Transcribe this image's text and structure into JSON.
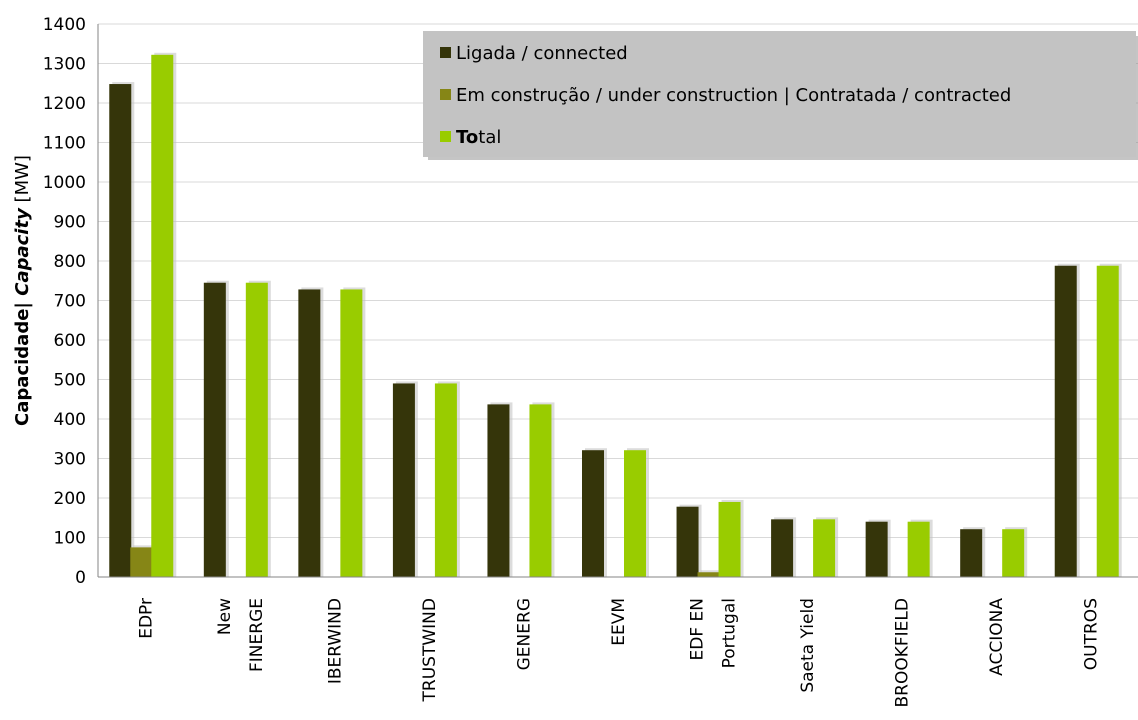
{
  "chart_data": {
    "type": "bar",
    "ylabel_parts": [
      {
        "text": "Capacidade| ",
        "bold": true,
        "italic": false
      },
      {
        "text": "Capacity",
        "bold": true,
        "italic": true
      },
      {
        "text": " [MW]",
        "bold": false,
        "italic": false
      }
    ],
    "ylim": [
      0,
      1400
    ],
    "yticks": [
      0,
      100,
      200,
      300,
      400,
      500,
      600,
      700,
      800,
      900,
      1000,
      1100,
      1200,
      1300,
      1400
    ],
    "grid": true,
    "legend_position": "top-right",
    "categories": [
      [
        "EDPr"
      ],
      [
        "New",
        "FINERGE"
      ],
      [
        "IBERWIND"
      ],
      [
        "TRUSTWIND"
      ],
      [
        "GENERG"
      ],
      [
        "EEVM"
      ],
      [
        "EDF EN",
        "Portugal"
      ],
      [
        "Saeta Yield"
      ],
      [
        "BROOKFIELD"
      ],
      [
        "ACCIONA"
      ],
      [
        "OUTROS"
      ]
    ],
    "series": [
      {
        "name": "Ligada / connected",
        "color": "#35350a",
        "values": [
          1248,
          745,
          728,
          490,
          437,
          321,
          178,
          146,
          140,
          121,
          788
        ]
      },
      {
        "name": "Em construção / under construction | Contratada / contracted",
        "color": "#868616",
        "values": [
          75,
          0,
          0,
          0,
          0,
          0,
          12,
          0,
          0,
          0,
          0
        ]
      },
      {
        "name": "Total",
        "name_parts": [
          {
            "text": "To",
            "bold": true
          },
          {
            "text": "tal",
            "bold": false
          }
        ],
        "color": "#99cc00",
        "values": [
          1322,
          745,
          728,
          490,
          437,
          321,
          190,
          146,
          140,
          121,
          788
        ]
      }
    ]
  }
}
